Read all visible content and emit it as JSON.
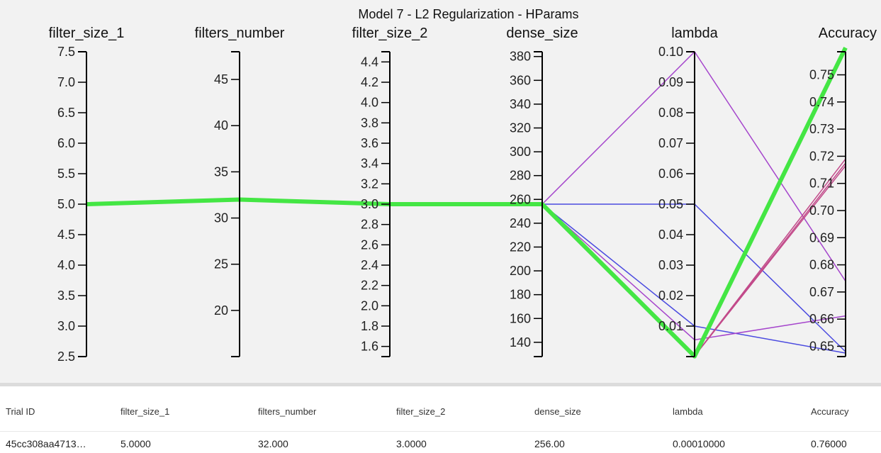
{
  "chart_data": {
    "type": "parallel_coordinates",
    "title": "Model 7 - L2 Regularization - HParams",
    "axes": [
      {
        "name": "filter_size_1",
        "range": [
          2.5,
          7.5
        ],
        "ticks": [
          "7.5",
          "7.0",
          "6.5",
          "6.0",
          "5.5",
          "5.0",
          "4.5",
          "4.0",
          "3.5",
          "3.0",
          "2.5"
        ]
      },
      {
        "name": "filters_number",
        "range": [
          15,
          48
        ],
        "ticks": [
          "45",
          "40",
          "35",
          "30",
          "25",
          "20"
        ]
      },
      {
        "name": "filter_size_2",
        "range": [
          1.5,
          4.5
        ],
        "ticks": [
          "4.4",
          "4.2",
          "4.0",
          "3.8",
          "3.6",
          "3.4",
          "3.2",
          "3.0",
          "2.8",
          "2.6",
          "2.4",
          "2.2",
          "2.0",
          "1.8",
          "1.6"
        ]
      },
      {
        "name": "dense_size",
        "range": [
          128,
          384
        ],
        "ticks": [
          "380",
          "360",
          "340",
          "320",
          "300",
          "280",
          "260",
          "240",
          "220",
          "200",
          "180",
          "160",
          "140"
        ]
      },
      {
        "name": "lambda",
        "range": [
          0,
          0.1
        ],
        "ticks": [
          "0.10",
          "0.09",
          "0.08",
          "0.07",
          "0.06",
          "0.05",
          "0.04",
          "0.03",
          "0.02",
          "0.01"
        ]
      },
      {
        "name": "Accuracy",
        "range": [
          0.6462,
          0.7585
        ],
        "ticks": [
          "0.75",
          "0.74",
          "0.73",
          "0.72",
          "0.71",
          "0.70",
          "0.69",
          "0.68",
          "0.67",
          "0.66",
          "0.65"
        ]
      }
    ],
    "lines": [
      {
        "values": [
          5,
          32,
          3,
          256,
          0.1,
          0.674
        ],
        "color": "#a545cc",
        "width": 1.5
      },
      {
        "values": [
          5,
          32,
          3,
          256,
          0.05,
          0.648
        ],
        "color": "#4a4ae0",
        "width": 1.5
      },
      {
        "values": [
          5,
          32,
          3,
          256,
          0.01,
          0.6475
        ],
        "color": "#4a4ae0",
        "width": 1.5
      },
      {
        "values": [
          5,
          32,
          3,
          256,
          0.0055,
          0.6612
        ],
        "color": "#a545cc",
        "width": 1.5
      },
      {
        "values": [
          5,
          32,
          3,
          256,
          0.0002,
          0.719
        ],
        "color": "#c24a8a",
        "width": 1.5
      },
      {
        "values": [
          5,
          32,
          3,
          256,
          0.0002,
          0.7175
        ],
        "color": "#c24a8a",
        "width": 1.5
      },
      {
        "values": [
          5,
          32,
          3,
          256,
          0.0002,
          0.7165
        ],
        "color": "#c24a8a",
        "width": 1.5
      },
      {
        "values": [
          5,
          32,
          3,
          256,
          0.0001,
          0.76
        ],
        "color": "#44e644",
        "width": 6
      }
    ],
    "line_colors": [
      "#a545cc",
      "#4a4ae0",
      "#c24a8a",
      "#44e644"
    ]
  },
  "table": {
    "headers": [
      "Trial ID",
      "filter_size_1",
      "filters_number",
      "filter_size_2",
      "dense_size",
      "lambda",
      "Accuracy"
    ],
    "rows": [
      [
        "45cc308aa4713…",
        "5.0000",
        "32.000",
        "3.0000",
        "256.00",
        "0.00010000",
        "0.76000"
      ]
    ]
  }
}
